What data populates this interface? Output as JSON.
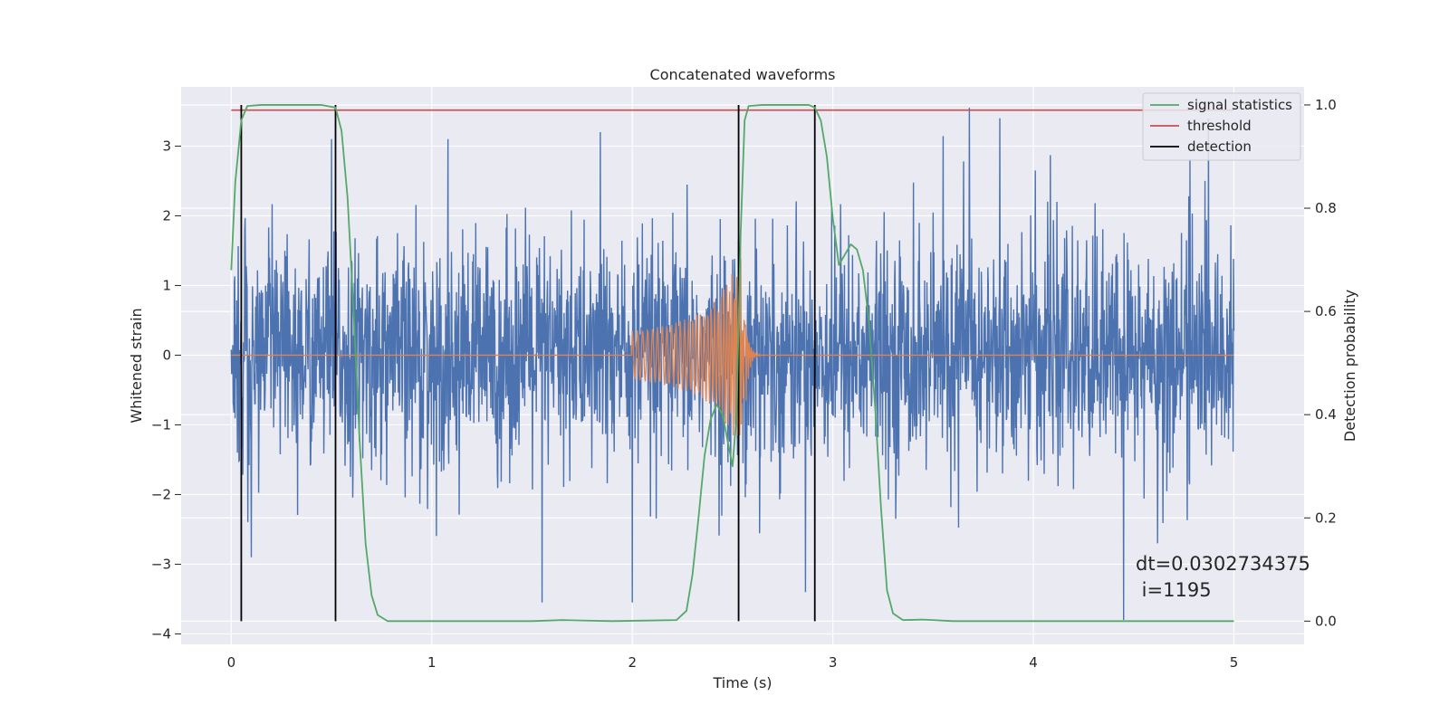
{
  "chart_data": {
    "type": "line",
    "title": "Concatenated waveforms",
    "xlabel": "Time (s)",
    "ylabel": "Whitened strain",
    "y2label": "Detection probability",
    "xlim": [
      -0.25,
      5.35
    ],
    "ylim": [
      -4.15,
      3.85
    ],
    "y2lim": [
      -0.045,
      1.035
    ],
    "xticks": [
      0,
      1,
      2,
      3,
      4,
      5
    ],
    "yticks": [
      -4,
      -3,
      -2,
      -1,
      0,
      1,
      2,
      3
    ],
    "y2ticks": [
      0.0,
      0.2,
      0.4,
      0.6,
      0.8,
      1.0
    ],
    "xtick_labels": [
      "0",
      "1",
      "2",
      "3",
      "4",
      "5"
    ],
    "ytick_labels": [
      "−4",
      "−3",
      "−2",
      "−1",
      "0",
      "1",
      "2",
      "3"
    ],
    "y2tick_labels": [
      "0.0",
      "0.2",
      "0.4",
      "0.6",
      "0.8",
      "1.0"
    ],
    "grid": true,
    "legend_position": "top-right",
    "legend": [
      "signal statistics",
      "threshold",
      "detection"
    ],
    "colors": {
      "noise": "#4c72b0",
      "chirp": "#dd8452",
      "signal_statistics": "#55a868",
      "threshold": "#c44e52",
      "detection": "#000000",
      "background": "#eaeaf2",
      "grid": "#ffffff"
    },
    "noise_series": {
      "x_range": [
        0,
        5
      ],
      "typical_range": [
        -1.8,
        1.8
      ],
      "peaks": [
        {
          "x": 0.03,
          "y": -1.4
        },
        {
          "x": 0.1,
          "y": -2.9
        },
        {
          "x": 0.5,
          "y": 3.1
        },
        {
          "x": 1.08,
          "y": 3.1
        },
        {
          "x": 1.55,
          "y": -3.55
        },
        {
          "x": 1.84,
          "y": 3.2
        },
        {
          "x": 2.0,
          "y": -3.55
        },
        {
          "x": 3.68,
          "y": 3.55
        },
        {
          "x": 4.01,
          "y": 2.65
        },
        {
          "x": 4.45,
          "y": -3.8
        },
        {
          "x": 4.62,
          "y": -2.7
        },
        {
          "x": 4.78,
          "y": 2.8
        }
      ]
    },
    "chirp_series": {
      "start": 2.0,
      "merger": 2.56,
      "start_amplitude": 0.35,
      "peak_amplitude": 1.75,
      "min_peak": -1.15
    },
    "threshold": 0.99,
    "detections": [
      0.05,
      0.52,
      2.53,
      2.91
    ],
    "signal_statistics": [
      {
        "x": 0.0,
        "y": 0.68
      },
      {
        "x": 0.02,
        "y": 0.85
      },
      {
        "x": 0.05,
        "y": 0.97
      },
      {
        "x": 0.08,
        "y": 0.998
      },
      {
        "x": 0.15,
        "y": 1.0
      },
      {
        "x": 0.45,
        "y": 1.0
      },
      {
        "x": 0.52,
        "y": 0.995
      },
      {
        "x": 0.55,
        "y": 0.95
      },
      {
        "x": 0.58,
        "y": 0.82
      },
      {
        "x": 0.61,
        "y": 0.6
      },
      {
        "x": 0.64,
        "y": 0.35
      },
      {
        "x": 0.67,
        "y": 0.15
      },
      {
        "x": 0.7,
        "y": 0.05
      },
      {
        "x": 0.73,
        "y": 0.012
      },
      {
        "x": 0.78,
        "y": 0.0
      },
      {
        "x": 1.5,
        "y": 0.0
      },
      {
        "x": 1.65,
        "y": 0.002
      },
      {
        "x": 1.9,
        "y": 0.0
      },
      {
        "x": 2.22,
        "y": 0.002
      },
      {
        "x": 2.27,
        "y": 0.02
      },
      {
        "x": 2.3,
        "y": 0.09
      },
      {
        "x": 2.33,
        "y": 0.2
      },
      {
        "x": 2.36,
        "y": 0.32
      },
      {
        "x": 2.39,
        "y": 0.39
      },
      {
        "x": 2.42,
        "y": 0.42
      },
      {
        "x": 2.45,
        "y": 0.4
      },
      {
        "x": 2.48,
        "y": 0.34
      },
      {
        "x": 2.5,
        "y": 0.3
      },
      {
        "x": 2.52,
        "y": 0.4
      },
      {
        "x": 2.54,
        "y": 0.75
      },
      {
        "x": 2.56,
        "y": 0.97
      },
      {
        "x": 2.58,
        "y": 0.998
      },
      {
        "x": 2.65,
        "y": 1.0
      },
      {
        "x": 2.88,
        "y": 1.0
      },
      {
        "x": 2.91,
        "y": 0.995
      },
      {
        "x": 2.94,
        "y": 0.97
      },
      {
        "x": 2.97,
        "y": 0.9
      },
      {
        "x": 3.0,
        "y": 0.78
      },
      {
        "x": 3.03,
        "y": 0.69
      },
      {
        "x": 3.06,
        "y": 0.71
      },
      {
        "x": 3.09,
        "y": 0.73
      },
      {
        "x": 3.12,
        "y": 0.72
      },
      {
        "x": 3.15,
        "y": 0.68
      },
      {
        "x": 3.18,
        "y": 0.58
      },
      {
        "x": 3.21,
        "y": 0.42
      },
      {
        "x": 3.24,
        "y": 0.22
      },
      {
        "x": 3.27,
        "y": 0.06
      },
      {
        "x": 3.3,
        "y": 0.015
      },
      {
        "x": 3.35,
        "y": 0.002
      },
      {
        "x": 3.45,
        "y": 0.003
      },
      {
        "x": 3.6,
        "y": 0.0
      },
      {
        "x": 5.0,
        "y": 0.0
      }
    ],
    "annotation": [
      "dt=0.0302734375",
      " i=1195"
    ]
  }
}
